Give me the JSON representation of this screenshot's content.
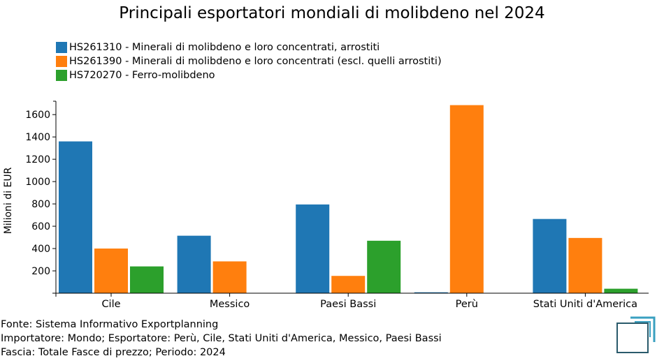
{
  "title": "Principali esportatori mondiali di molibdeno nel 2024",
  "chart_data": {
    "type": "bar",
    "title": "Principali esportatori mondiali di molibdeno nel 2024",
    "xlabel": "",
    "ylabel": "Milioni di EUR",
    "ylim": [
      0,
      1720
    ],
    "yticks": [
      200,
      400,
      600,
      800,
      1000,
      1200,
      1400,
      1600
    ],
    "grid": false,
    "legend_position": "top-left",
    "categories": [
      "Cile",
      "Messico",
      "Paesi Bassi",
      "Perù",
      "Stati Uniti d'America"
    ],
    "series": [
      {
        "name": "HS261310 - Minerali di molibdeno e loro concentrati, arrostiti",
        "color": "#1f77b4",
        "values": [
          1360,
          515,
          795,
          8,
          665
        ]
      },
      {
        "name": "HS261390 - Minerali di molibdeno e loro concentrati (escl. quelli arrostiti)",
        "color": "#ff7f0e",
        "values": [
          400,
          285,
          155,
          1685,
          495
        ]
      },
      {
        "name": "HS720270 - Ferro-molibdeno",
        "color": "#2ca02c",
        "values": [
          240,
          0,
          470,
          0,
          40
        ]
      }
    ]
  },
  "footer": {
    "line1": "Fonte: Sistema Informativo Exportplanning",
    "line2": "Importatore: Mondo; Esportatore: Perù, Cile, Stati Uniti d'America, Messico, Paesi Bassi",
    "line3": "Fascia: Totale Fasce di prezzo; Periodo: 2024"
  },
  "logo": {
    "icon": "exportplanning-logo-icon",
    "color": "#2a5a6b",
    "accent": "#3aa0c0"
  }
}
